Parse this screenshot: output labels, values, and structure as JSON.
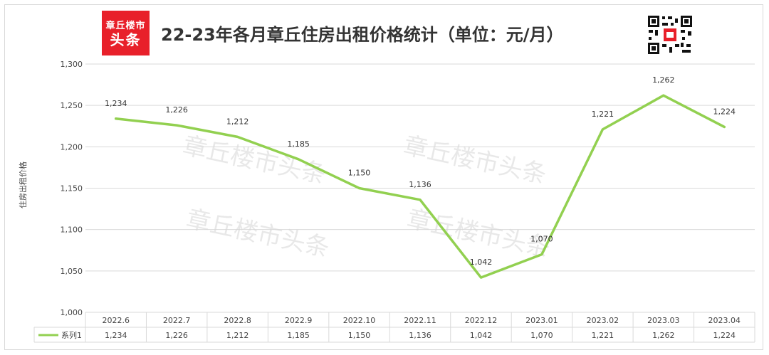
{
  "logo": {
    "line1": "章丘楼市",
    "line2": "头条"
  },
  "title": "22-23年各月章丘住房出租价格统计（单位：元/月）",
  "watermark": "章丘楼市头条",
  "colors": {
    "series": "#92d050",
    "logo_bg": "#e8202a",
    "grid": "#d9d9d9"
  },
  "chart_data": {
    "type": "line",
    "title": "22-23年各月章丘住房出租价格统计（单位：元/月）",
    "ylabel": "住房出租价格",
    "xlabel": "",
    "ylim": [
      1000,
      1300
    ],
    "yticks": [
      1000,
      1050,
      1100,
      1150,
      1200,
      1250,
      1300
    ],
    "ytick_labels": [
      "1,000",
      "1,050",
      "1,100",
      "1,150",
      "1,200",
      "1,250",
      "1,300"
    ],
    "grid": true,
    "legend": "data-table-bottom",
    "categories": [
      "2022.6",
      "2022.7",
      "2022.8",
      "2022.9",
      "2022.10",
      "2022.11",
      "2022.12",
      "2023.01",
      "2023.02",
      "2023.03",
      "2023.04"
    ],
    "series": [
      {
        "name": "系列1",
        "values": [
          1234,
          1226,
          1212,
          1185,
          1150,
          1136,
          1042,
          1070,
          1221,
          1262,
          1224
        ],
        "labels": [
          "1,234",
          "1,226",
          "1,212",
          "1,185",
          "1,150",
          "1,136",
          "1,042",
          "1,070",
          "1,221",
          "1,262",
          "1,224"
        ]
      }
    ]
  }
}
